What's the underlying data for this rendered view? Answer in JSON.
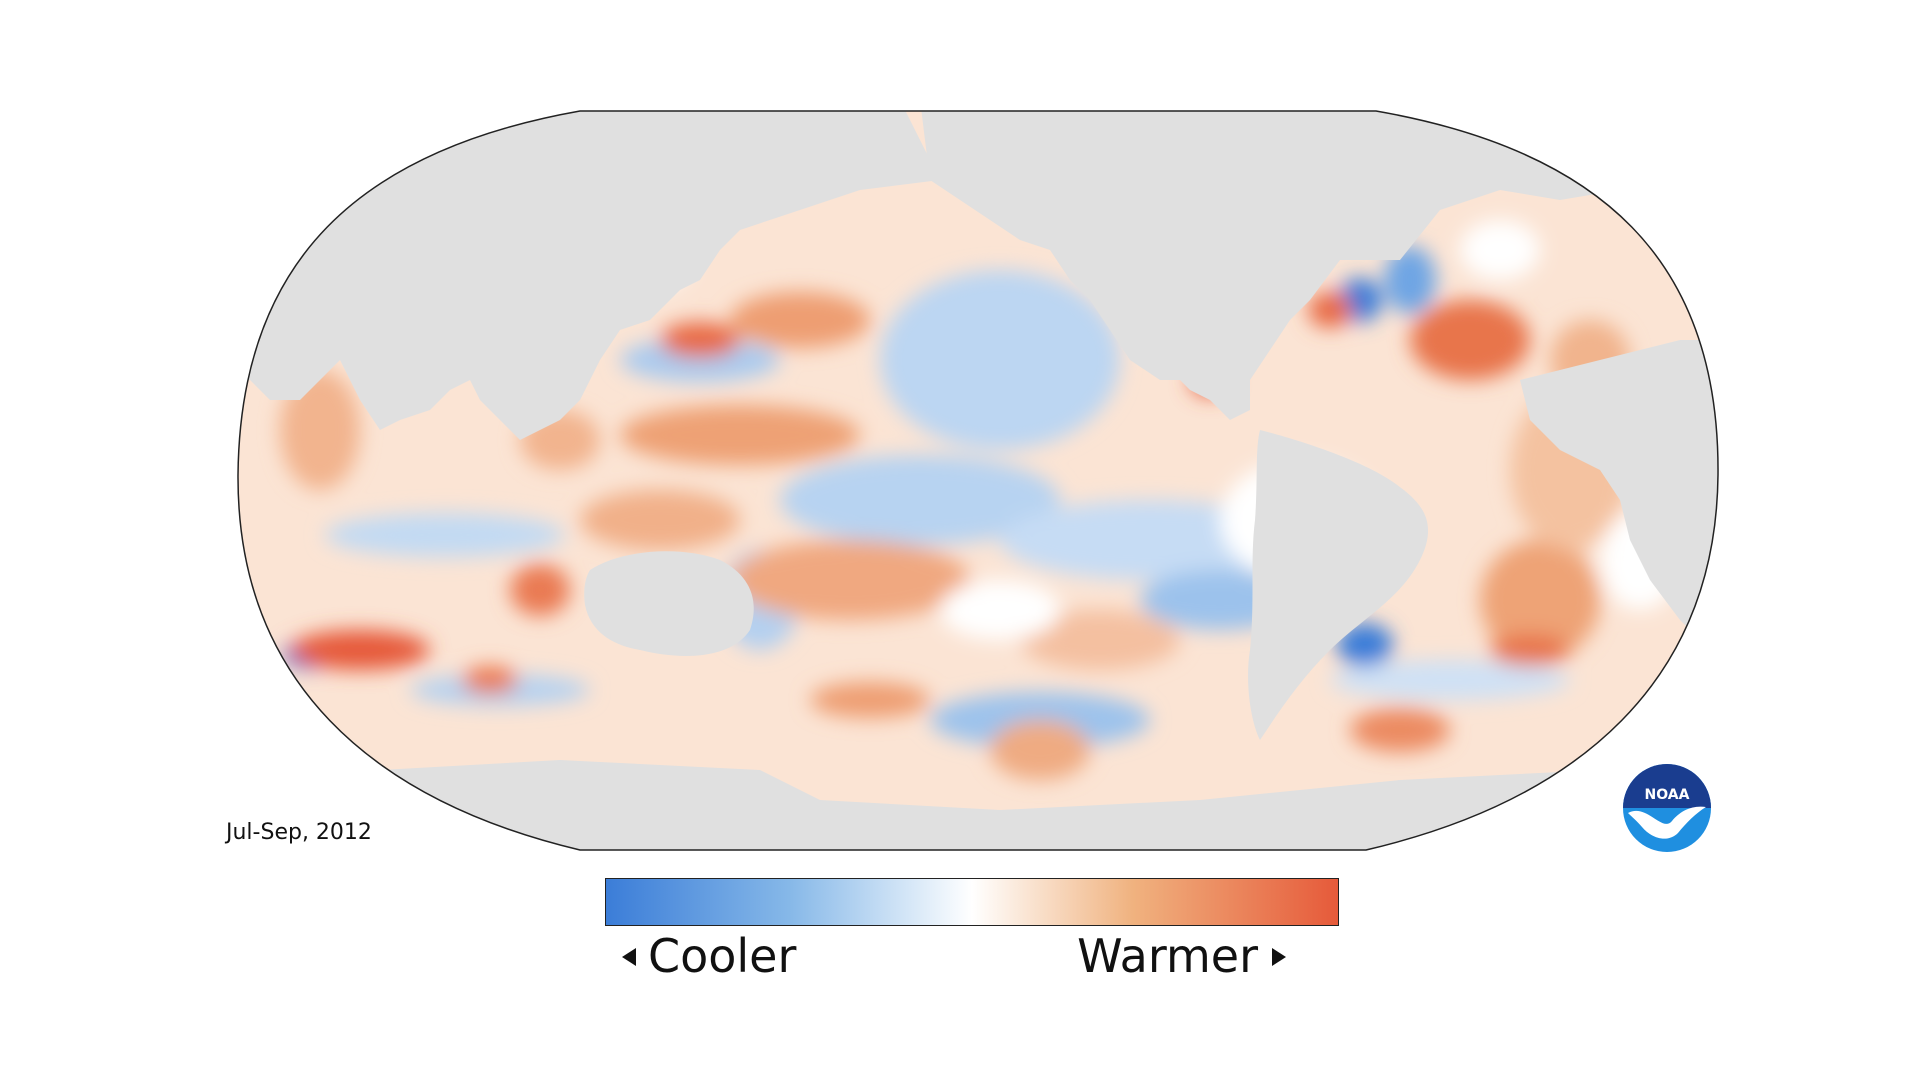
{
  "map": {
    "projection": "Robinson",
    "center_longitude": "Pacific-centered",
    "variable_legend": {
      "low_label": "Cooler",
      "high_label": "Warmer",
      "colors": {
        "cool": "#3b7dd8",
        "light_cool": "#86b8e8",
        "neutral": "#ffffff",
        "light_warm": "#f0b27f",
        "warm": "#e65a3a"
      }
    },
    "period": "Jul-Sep, 2012",
    "land_color": "#e0e0e0",
    "outline_color": "#222222"
  },
  "logo": {
    "text": "NOAA",
    "colors": {
      "top": "#1a3d8f",
      "bottom": "#1f8fe0",
      "bird": "#ffffff"
    }
  }
}
